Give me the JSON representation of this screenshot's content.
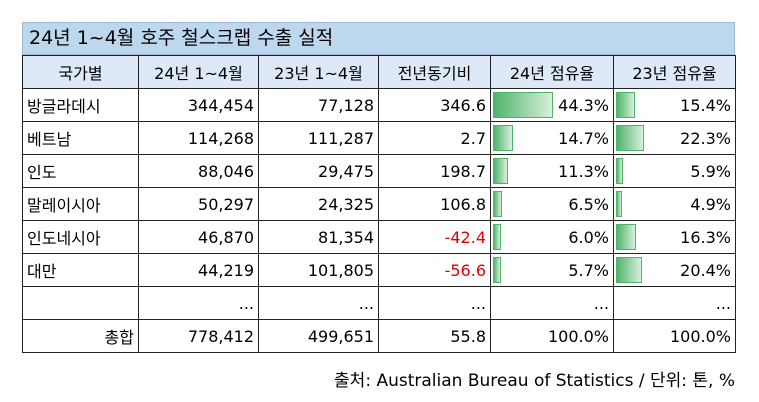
{
  "title": "24년 1~4월 호주 철스크랩 수출 실적",
  "table": {
    "columns": [
      "국가별",
      "24년 1~4월",
      "23년 1~4월",
      "전년동기비",
      "24년 점유율",
      "23년 점유율"
    ],
    "rows": [
      [
        "방글라데시",
        "344,454",
        "77,128",
        "346.6",
        "44.3%",
        "15.4%"
      ],
      [
        "베트남",
        "114,268",
        "111,287",
        "2.7",
        "14.7%",
        "22.3%"
      ],
      [
        "인도",
        "88,046",
        "29,475",
        "198.7",
        "11.3%",
        "5.9%"
      ],
      [
        "말레이시아",
        "50,297",
        "24,325",
        "106.8",
        "6.5%",
        "4.9%"
      ],
      [
        "인도네시아",
        "46,870",
        "81,354",
        "-42.4",
        "6.0%",
        "16.3%"
      ],
      [
        "대만",
        "44,219",
        "101,805",
        "-56.6",
        "5.7%",
        "20.4%"
      ],
      [
        "",
        "...",
        "...",
        "...",
        "...",
        "..."
      ],
      [
        "총합",
        "778,412",
        "499,651",
        "55.8",
        "100.0%",
        "100.0%"
      ]
    ]
  },
  "source": "출처: Australian Bureau of Statistics / 단위: 톤, %"
}
